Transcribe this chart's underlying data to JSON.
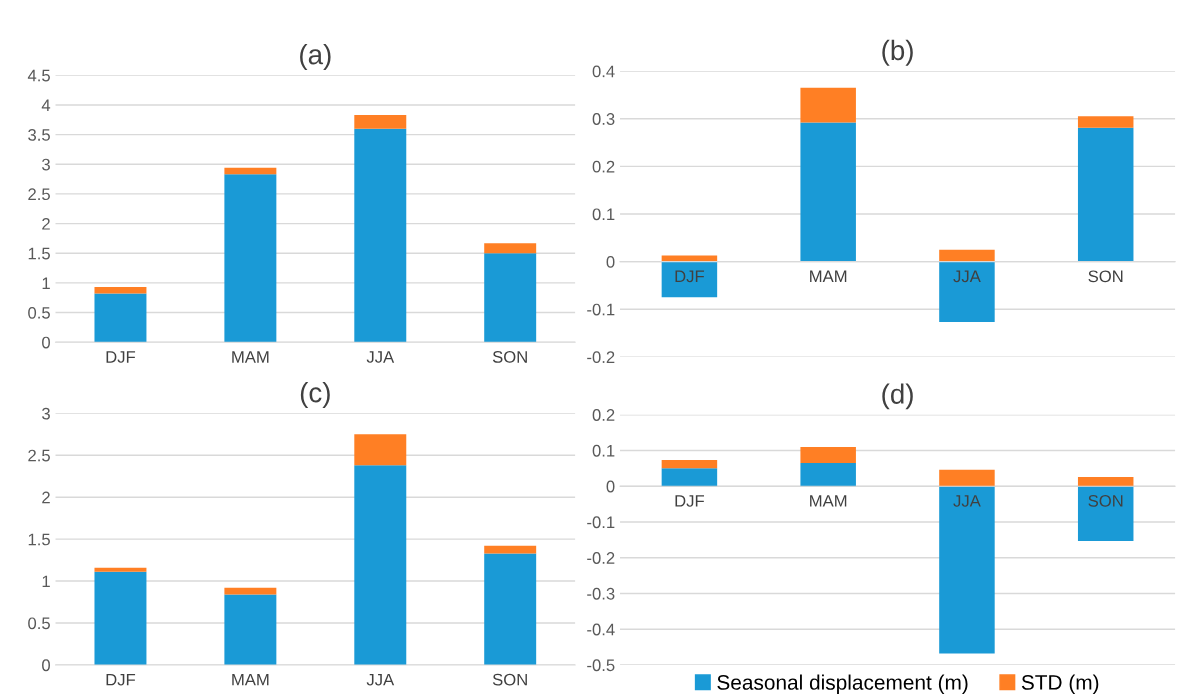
{
  "chart_data": [
    {
      "type": "bar",
      "title": "(a)",
      "categories": [
        "DJF",
        "MAM",
        "JJA",
        "SON"
      ],
      "stacked": true,
      "ylim": [
        0,
        4.5
      ],
      "yticks": [
        0,
        0.5,
        1,
        1.5,
        2,
        2.5,
        3,
        3.5,
        4,
        4.5
      ],
      "grid": "y",
      "series": [
        {
          "color": "#1a9ad6",
          "values": [
            0.82,
            2.83,
            3.6,
            1.5
          ]
        },
        {
          "color": "#ff7f24",
          "values": [
            0.11,
            0.11,
            0.23,
            0.17
          ]
        }
      ]
    },
    {
      "type": "bar",
      "title": "(b)",
      "categories": [
        "DJF",
        "MAM",
        "JJA",
        "SON"
      ],
      "stacked": true,
      "ylim": [
        -0.2,
        0.4
      ],
      "yticks": [
        -0.2,
        -0.1,
        0,
        0.1,
        0.2,
        0.3,
        0.4
      ],
      "grid": "y",
      "series": [
        {
          "color": "#1a9ad6",
          "values": [
            -0.075,
            0.292,
            -0.127,
            0.281
          ]
        },
        {
          "color": "#ff7f24",
          "values": [
            0.013,
            0.073,
            0.025,
            0.024
          ]
        }
      ]
    },
    {
      "type": "bar",
      "title": "(c)",
      "categories": [
        "DJF",
        "MAM",
        "JJA",
        "SON"
      ],
      "stacked": true,
      "ylim": [
        0,
        3
      ],
      "yticks": [
        0,
        0.5,
        1,
        1.5,
        2,
        2.5,
        3
      ],
      "grid": "y",
      "series": [
        {
          "color": "#1a9ad6",
          "values": [
            1.11,
            0.84,
            2.38,
            1.33
          ]
        },
        {
          "color": "#ff7f24",
          "values": [
            0.05,
            0.08,
            0.37,
            0.09
          ]
        }
      ]
    },
    {
      "type": "bar",
      "title": "(d)",
      "categories": [
        "DJF",
        "MAM",
        "JJA",
        "SON"
      ],
      "stacked": true,
      "ylim": [
        -0.5,
        0.2
      ],
      "yticks": [
        -0.5,
        -0.4,
        -0.3,
        -0.2,
        -0.1,
        0,
        0.1,
        0.2
      ],
      "grid": "y",
      "legend": "bottom",
      "series": [
        {
          "name": "Seasonal displacement (m)",
          "color": "#1a9ad6",
          "values": [
            0.05,
            0.065,
            -0.468,
            -0.153
          ]
        },
        {
          "name": "STD (m)",
          "color": "#ff7f24",
          "values": [
            0.023,
            0.045,
            0.046,
            0.026
          ]
        }
      ]
    }
  ]
}
